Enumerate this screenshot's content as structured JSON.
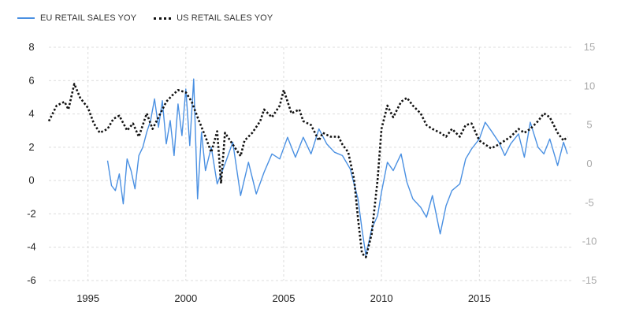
{
  "chart_data": {
    "type": "line",
    "legend": {
      "position": "top-left",
      "items": [
        "EU RETAIL SALES YOY",
        "US RETAIL SALES YOY"
      ]
    },
    "grid": true,
    "x_axis": {
      "range": [
        1993.0,
        2019.7
      ],
      "ticks": [
        1995,
        2000,
        2005,
        2010,
        2015
      ],
      "tick_labels": [
        "1995",
        "2000",
        "2005",
        "2010",
        "2015"
      ]
    },
    "y_left": {
      "range": [
        -6,
        8
      ],
      "ticks": [
        -6,
        -4,
        -2,
        0,
        2,
        4,
        6,
        8
      ],
      "tick_labels": [
        "-6",
        "-4",
        "-2",
        "0",
        "2",
        "4",
        "6",
        "8"
      ]
    },
    "y_right": {
      "range": [
        -15,
        15
      ],
      "ticks": [
        -15,
        -10,
        -5,
        0,
        5,
        10,
        15
      ],
      "tick_labels": [
        "-15",
        "-10",
        "-5",
        "0",
        "5",
        "10",
        "15"
      ]
    },
    "colors": {
      "eu": "#4a90e2",
      "us": "#111111",
      "grid": "#dcdcdc",
      "left_ticks": "#222222",
      "right_ticks": "#aaaaaa"
    },
    "series": [
      {
        "name": "EU RETAIL SALES YOY",
        "axis": "left",
        "x": [
          1996.0,
          1996.2,
          1996.4,
          1996.6,
          1996.8,
          1997.0,
          1997.2,
          1997.4,
          1997.6,
          1997.8,
          1998.0,
          1998.2,
          1998.4,
          1998.6,
          1998.8,
          1999.0,
          1999.2,
          1999.4,
          1999.6,
          1999.8,
          2000.0,
          2000.2,
          2000.4,
          2000.6,
          2000.8,
          2001.0,
          2001.3,
          2001.6,
          2002.0,
          2002.4,
          2002.8,
          2003.2,
          2003.6,
          2004.0,
          2004.4,
          2004.8,
          2005.2,
          2005.6,
          2006.0,
          2006.4,
          2006.8,
          2007.2,
          2007.6,
          2008.0,
          2008.4,
          2008.8,
          2009.0,
          2009.2,
          2009.5,
          2009.8,
          2010.0,
          2010.3,
          2010.6,
          2011.0,
          2011.3,
          2011.6,
          2012.0,
          2012.3,
          2012.6,
          2013.0,
          2013.3,
          2013.6,
          2014.0,
          2014.3,
          2014.6,
          2015.0,
          2015.3,
          2015.6,
          2016.0,
          2016.3,
          2016.6,
          2017.0,
          2017.3,
          2017.6,
          2018.0,
          2018.3,
          2018.6,
          2019.0,
          2019.3,
          2019.5
        ],
        "values": [
          1.2,
          -0.3,
          -0.6,
          0.4,
          -1.4,
          1.3,
          0.6,
          -0.5,
          1.5,
          2.0,
          2.9,
          3.6,
          4.9,
          3.2,
          4.8,
          2.2,
          3.6,
          1.5,
          4.6,
          2.7,
          5.5,
          2.1,
          6.1,
          -1.1,
          2.9,
          0.6,
          2.0,
          -0.2,
          1.0,
          2.3,
          -0.9,
          1.1,
          -0.8,
          0.5,
          1.6,
          1.3,
          2.6,
          1.4,
          2.6,
          1.6,
          3.1,
          2.2,
          1.7,
          1.5,
          0.7,
          -1.1,
          -2.9,
          -4.5,
          -2.9,
          -2.1,
          -0.7,
          1.1,
          0.6,
          1.6,
          -0.1,
          -1.1,
          -1.6,
          -2.2,
          -0.9,
          -3.2,
          -1.5,
          -0.6,
          -0.2,
          1.3,
          1.9,
          2.5,
          3.5,
          3.0,
          2.3,
          1.5,
          2.2,
          2.8,
          1.4,
          3.5,
          2.0,
          1.6,
          2.5,
          0.9,
          2.3,
          1.6
        ]
      },
      {
        "name": "US RETAIL SALES YOY",
        "axis": "right",
        "x": [
          1993.0,
          1993.4,
          1993.8,
          1994.0,
          1994.3,
          1994.6,
          1995.0,
          1995.3,
          1995.6,
          1996.0,
          1996.3,
          1996.6,
          1997.0,
          1997.3,
          1997.6,
          1998.0,
          1998.3,
          1998.6,
          1999.0,
          1999.3,
          1999.6,
          2000.0,
          2000.3,
          2000.6,
          2001.0,
          2001.3,
          2001.6,
          2001.8,
          2002.0,
          2002.4,
          2002.8,
          2003.0,
          2003.4,
          2003.8,
          2004.0,
          2004.4,
          2004.8,
          2005.0,
          2005.4,
          2005.8,
          2006.0,
          2006.4,
          2006.8,
          2007.0,
          2007.4,
          2007.8,
          2008.0,
          2008.3,
          2008.6,
          2008.8,
          2009.0,
          2009.2,
          2009.5,
          2009.8,
          2010.0,
          2010.3,
          2010.6,
          2011.0,
          2011.3,
          2011.6,
          2012.0,
          2012.3,
          2012.6,
          2013.0,
          2013.3,
          2013.6,
          2014.0,
          2014.3,
          2014.6,
          2015.0,
          2015.3,
          2015.6,
          2016.0,
          2016.3,
          2016.6,
          2017.0,
          2017.3,
          2017.6,
          2018.0,
          2018.3,
          2018.6,
          2019.0,
          2019.3,
          2019.5
        ],
        "values": [
          5.5,
          7.5,
          8.0,
          7.0,
          10.3,
          8.5,
          7.2,
          5.2,
          4.0,
          4.5,
          5.8,
          6.2,
          4.3,
          5.2,
          3.5,
          6.5,
          4.5,
          6.0,
          8.0,
          8.8,
          9.5,
          9.2,
          8.0,
          6.0,
          3.5,
          1.5,
          4.2,
          -2.5,
          4.0,
          2.5,
          1.0,
          3.0,
          4.0,
          5.5,
          7.0,
          6.0,
          7.5,
          9.5,
          6.5,
          7.0,
          5.5,
          5.0,
          3.0,
          4.0,
          3.5,
          3.5,
          2.5,
          1.5,
          -2.0,
          -7.0,
          -11.5,
          -12.0,
          -9.0,
          -2.0,
          4.5,
          7.5,
          6.0,
          8.0,
          8.5,
          7.5,
          6.5,
          5.0,
          4.5,
          4.0,
          3.5,
          4.5,
          3.5,
          5.0,
          5.2,
          3.0,
          2.5,
          2.0,
          2.5,
          3.0,
          3.5,
          4.5,
          4.0,
          4.5,
          5.5,
          6.5,
          6.0,
          4.0,
          3.0,
          3.5
        ]
      }
    ]
  }
}
